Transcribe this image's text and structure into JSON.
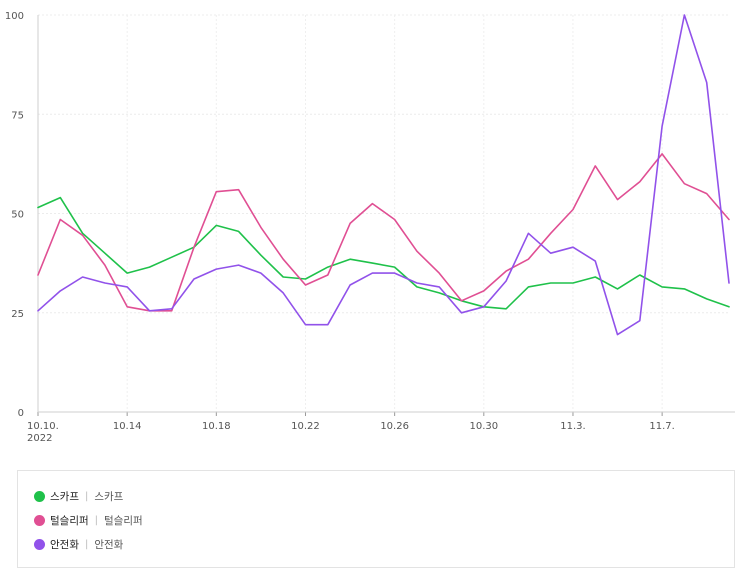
{
  "chart_data": {
    "type": "line",
    "x_start_label": "10.10.",
    "year_label": "2022",
    "x_ticks": [
      "10.10.",
      "10.14",
      "10.18",
      "10.22",
      "10.26",
      "10.30",
      "11.3.",
      "11.7."
    ],
    "y_ticks": [
      "0",
      "25",
      "50",
      "75",
      "100"
    ],
    "ylim": [
      0,
      100
    ],
    "grid": true,
    "legend_placement": "bottom",
    "x": [
      "10.10.",
      "10.11",
      "10.12",
      "10.13",
      "10.14",
      "10.15",
      "10.16",
      "10.17",
      "10.18",
      "10.19",
      "10.20",
      "10.21",
      "10.22",
      "10.23",
      "10.24",
      "10.25",
      "10.26",
      "10.27",
      "10.28",
      "10.29",
      "10.30",
      "10.31",
      "11.1",
      "11.2",
      "11.3.",
      "11.4",
      "11.5",
      "11.6",
      "11.7.",
      "11.8",
      "11.9",
      "11.10"
    ],
    "series": [
      {
        "name": "스카프",
        "color": "#1fc14a",
        "values": [
          51.5,
          54,
          45,
          40,
          35,
          36.5,
          39,
          41.5,
          47,
          45.5,
          39.5,
          34,
          33.5,
          36.5,
          38.5,
          37.5,
          36.5,
          31.5,
          30,
          28,
          26.5,
          26,
          31.5,
          32.5,
          32.5,
          34,
          31,
          34.5,
          31.5,
          31,
          28.5,
          26.5
        ]
      },
      {
        "name": "털슬리퍼",
        "color": "#e04f93",
        "values": [
          34.5,
          48.5,
          44.5,
          37,
          26.5,
          25.5,
          25.5,
          41.5,
          55.5,
          56,
          46.5,
          38.5,
          32,
          34.5,
          47.5,
          52.5,
          48.5,
          40.5,
          35,
          28,
          30.5,
          35.5,
          38.5,
          45,
          51,
          62,
          53.5,
          58,
          65,
          57.5,
          55,
          48.5
        ]
      },
      {
        "name": "안전화",
        "color": "#9152ea",
        "values": [
          25.5,
          30.5,
          34,
          32.5,
          31.5,
          25.5,
          26,
          33.5,
          36,
          37,
          35,
          30,
          22,
          22,
          32,
          35,
          35,
          32.5,
          31.5,
          25,
          26.5,
          33,
          45,
          40,
          41.5,
          38,
          19.5,
          23,
          72,
          100,
          83,
          32.5
        ]
      }
    ]
  },
  "legend": {
    "items": [
      {
        "name": "스카프",
        "sub": "스카프",
        "color": "#1fc14a"
      },
      {
        "name": "털슬리퍼",
        "sub": "털슬리퍼",
        "color": "#e04f93"
      },
      {
        "name": "안전화",
        "sub": "안전화",
        "color": "#9152ea"
      }
    ],
    "separator": "|"
  }
}
